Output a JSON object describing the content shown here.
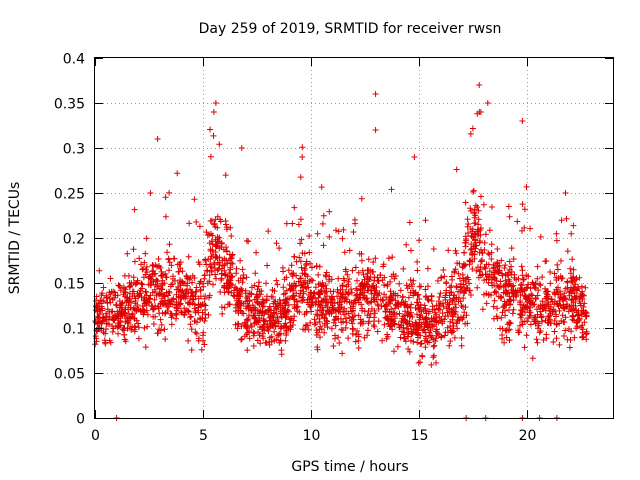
{
  "chart_data": {
    "type": "scatter",
    "title": "Day 259 of 2019, SRMTID for receiver rwsn",
    "xlabel": "GPS time / hours",
    "ylabel": "SRMTID / TECUs",
    "xlim": [
      0,
      24
    ],
    "ylim": [
      0,
      0.4
    ],
    "x_ticks": [
      0,
      5,
      10,
      15,
      20
    ],
    "x_tick_labels": [
      "0",
      "5",
      "10",
      "15",
      "20"
    ],
    "y_ticks": [
      0,
      0.05,
      0.1,
      0.15,
      0.2,
      0.25,
      0.3,
      0.35,
      0.4
    ],
    "y_tick_labels": [
      "0",
      "0.05",
      "0.1",
      "0.15",
      "0.2",
      "0.25",
      "0.3",
      "0.35",
      "0.4"
    ],
    "grid": true,
    "marker": "plus",
    "series_color": "#e00000",
    "series": [
      {
        "name": "SRMTID",
        "approx_points": 2600,
        "x_range": [
          0,
          22.8
        ],
        "envelope": {
          "hours": [
            0,
            1,
            2,
            3,
            4,
            5,
            5.5,
            6,
            7,
            8,
            9,
            9.5,
            10,
            11,
            12,
            13,
            14,
            15,
            16,
            17,
            17.5,
            18,
            19,
            20,
            21,
            22,
            22.8
          ],
          "median": [
            0.11,
            0.12,
            0.13,
            0.14,
            0.14,
            0.12,
            0.2,
            0.17,
            0.12,
            0.11,
            0.12,
            0.15,
            0.13,
            0.13,
            0.12,
            0.14,
            0.12,
            0.11,
            0.11,
            0.14,
            0.2,
            0.18,
            0.13,
            0.13,
            0.12,
            0.13,
            0.11
          ],
          "spread": [
            0.04,
            0.04,
            0.05,
            0.05,
            0.05,
            0.05,
            0.06,
            0.05,
            0.05,
            0.04,
            0.05,
            0.06,
            0.05,
            0.05,
            0.05,
            0.06,
            0.05,
            0.05,
            0.05,
            0.06,
            0.07,
            0.06,
            0.05,
            0.05,
            0.05,
            0.05,
            0.04
          ]
        },
        "peaks": [
          {
            "x": 2.9,
            "y": 0.31
          },
          {
            "x": 5.6,
            "y": 0.35
          },
          {
            "x": 6.8,
            "y": 0.3
          },
          {
            "x": 9.6,
            "y": 0.29
          },
          {
            "x": 13.0,
            "y": 0.36
          },
          {
            "x": 13.0,
            "y": 0.32
          },
          {
            "x": 14.8,
            "y": 0.29
          },
          {
            "x": 17.8,
            "y": 0.37
          },
          {
            "x": 18.2,
            "y": 0.35
          },
          {
            "x": 19.8,
            "y": 0.33
          },
          {
            "x": 21.8,
            "y": 0.25
          }
        ],
        "zero_points": [
          1.0,
          17.2,
          18.1,
          19.8,
          20.6,
          21.4
        ]
      }
    ]
  }
}
